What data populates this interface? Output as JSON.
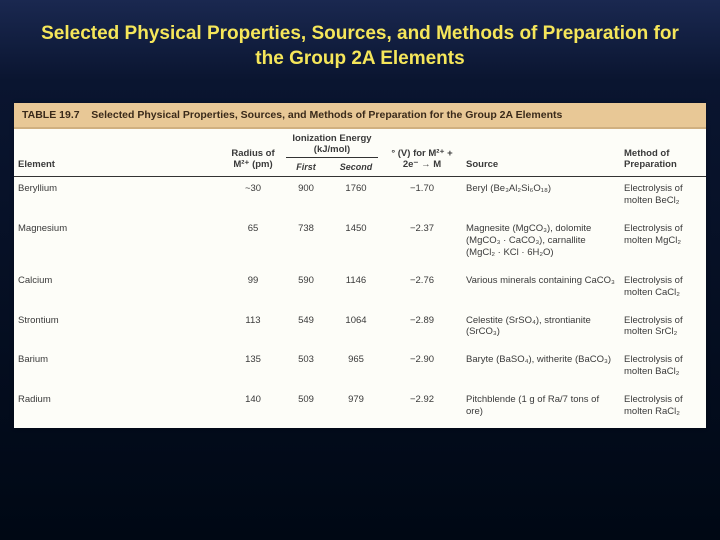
{
  "slide": {
    "title": "Selected Physical Properties, Sources, and Methods of Preparation for the Group 2A Elements",
    "title_color": "#f5e65a",
    "title_fontsize": 19,
    "background_gradient": [
      "#1a2850",
      "#0a1530",
      "#000814"
    ]
  },
  "table": {
    "caption_label": "TABLE 19.7",
    "caption_text": "Selected Physical Properties, Sources, and Methods of Preparation for the Group 2A Elements",
    "header_bar_bg": "#e8c896",
    "table_bg": "#fdfdf8",
    "font_size": 9.5,
    "columns": {
      "element": "Element",
      "radius": "Radius of M²⁺ (pm)",
      "ionization_group": "Ionization Energy (kJ/mol)",
      "ionization_first": "First",
      "ionization_second": "Second",
      "potential": "° (V) for M²⁺ + 2e⁻ → M",
      "source": "Source",
      "method": "Method of Preparation"
    },
    "rows": [
      {
        "element": "Beryllium",
        "radius": "~30",
        "ie_first": "900",
        "ie_second": "1760",
        "potential": "−1.70",
        "source": "Beryl (Be₃Al₂Si₆O₁₈)",
        "method": "Electrolysis of molten BeCl₂"
      },
      {
        "element": "Magnesium",
        "radius": "65",
        "ie_first": "738",
        "ie_second": "1450",
        "potential": "−2.37",
        "source": "Magnesite (MgCO₃), dolomite (MgCO₃ · CaCO₃), carnallite (MgCl₂ · KCl · 6H₂O)",
        "method": "Electrolysis of molten MgCl₂"
      },
      {
        "element": "Calcium",
        "radius": "99",
        "ie_first": "590",
        "ie_second": "1146",
        "potential": "−2.76",
        "source": "Various minerals containing CaCO₃",
        "method": "Electrolysis of molten CaCl₂"
      },
      {
        "element": "Strontium",
        "radius": "113",
        "ie_first": "549",
        "ie_second": "1064",
        "potential": "−2.89",
        "source": "Celestite (SrSO₄), strontianite (SrCO₃)",
        "method": "Electrolysis of molten SrCl₂"
      },
      {
        "element": "Barium",
        "radius": "135",
        "ie_first": "503",
        "ie_second": "965",
        "potential": "−2.90",
        "source": "Baryte (BaSO₄), witherite (BaCO₃)",
        "method": "Electrolysis of molten BaCl₂"
      },
      {
        "element": "Radium",
        "radius": "140",
        "ie_first": "509",
        "ie_second": "979",
        "potential": "−2.92",
        "source": "Pitchblende (1 g of Ra/7 tons of ore)",
        "method": "Electrolysis of molten RaCl₂"
      }
    ]
  }
}
